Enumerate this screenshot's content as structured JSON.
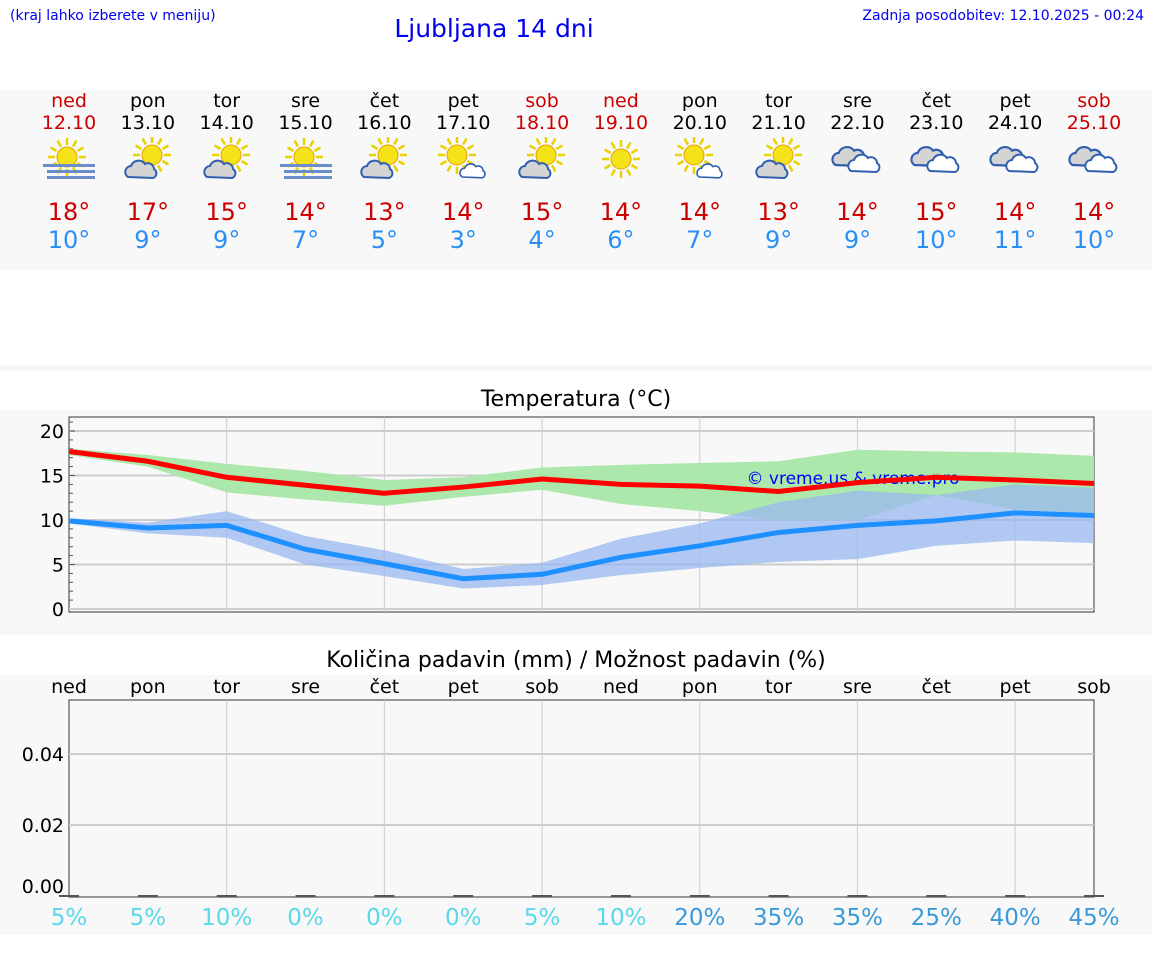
{
  "header": {
    "hint": "(kraj lahko izberete v meniju)",
    "title": "Ljubljana 14 dni",
    "updated": "Zadnja posodobitev: 12.10.2025 - 00:24"
  },
  "colors": {
    "weekend": "#cc0000",
    "max": "#cc0000",
    "min": "#2a8ff5",
    "max_line": "#ff0000",
    "min_line": "#1e90ff",
    "max_band": "#a8e6a8",
    "min_band": "#aac4f0",
    "precip_low": "#5ad8ea",
    "precip_high": "#3a9ad8"
  },
  "days": [
    {
      "name": "ned",
      "date": "12.10",
      "weekend": true,
      "icon": "sun-fog-icon",
      "max": "18°",
      "min": "10°"
    },
    {
      "name": "pon",
      "date": "13.10",
      "weekend": false,
      "icon": "partly-cloudy-icon",
      "max": "17°",
      "min": "9°"
    },
    {
      "name": "tor",
      "date": "14.10",
      "weekend": false,
      "icon": "partly-cloudy-icon",
      "max": "15°",
      "min": "9°"
    },
    {
      "name": "sre",
      "date": "15.10",
      "weekend": false,
      "icon": "sun-fog-icon",
      "max": "14°",
      "min": "7°"
    },
    {
      "name": "čet",
      "date": "16.10",
      "weekend": false,
      "icon": "partly-cloudy-icon",
      "max": "13°",
      "min": "5°"
    },
    {
      "name": "pet",
      "date": "17.10",
      "weekend": false,
      "icon": "sun-small-cloud-icon",
      "max": "14°",
      "min": "3°"
    },
    {
      "name": "sob",
      "date": "18.10",
      "weekend": true,
      "icon": "partly-cloudy-icon",
      "max": "15°",
      "min": "4°"
    },
    {
      "name": "ned",
      "date": "19.10",
      "weekend": true,
      "icon": "sun-icon",
      "max": "14°",
      "min": "6°"
    },
    {
      "name": "pon",
      "date": "20.10",
      "weekend": false,
      "icon": "sun-small-cloud-icon",
      "max": "14°",
      "min": "7°"
    },
    {
      "name": "tor",
      "date": "21.10",
      "weekend": false,
      "icon": "partly-cloudy-icon",
      "max": "13°",
      "min": "9°"
    },
    {
      "name": "sre",
      "date": "22.10",
      "weekend": false,
      "icon": "cloudy-icon",
      "max": "14°",
      "min": "9°"
    },
    {
      "name": "čet",
      "date": "23.10",
      "weekend": false,
      "icon": "cloudy-icon",
      "max": "15°",
      "min": "10°"
    },
    {
      "name": "pet",
      "date": "24.10",
      "weekend": false,
      "icon": "cloudy-icon",
      "max": "14°",
      "min": "11°"
    },
    {
      "name": "sob",
      "date": "25.10",
      "weekend": true,
      "icon": "cloudy-icon",
      "max": "14°",
      "min": "10°"
    }
  ],
  "chart_data": [
    {
      "type": "line",
      "title": "Temperatura (°C)",
      "ylim": [
        0,
        21.6
      ],
      "yticks": [
        "0",
        "5",
        "10",
        "15",
        "20"
      ],
      "grid": true,
      "watermark": "© vreme.us & vreme.pro",
      "series": [
        {
          "kind": "max",
          "values": [
            17.7,
            16.6,
            14.8,
            13.9,
            13.0,
            13.7,
            14.6,
            14.0,
            13.8,
            13.2,
            14.2,
            14.8,
            14.5,
            14.1
          ],
          "band_high": [
            18.0,
            17.3,
            16.3,
            15.5,
            14.5,
            14.8,
            15.9,
            16.2,
            16.4,
            16.6,
            17.9,
            17.7,
            17.6,
            17.2
          ],
          "band_low": [
            17.3,
            16.0,
            13.1,
            12.3,
            11.6,
            12.6,
            13.4,
            11.8,
            11.0,
            9.9,
            10.0,
            12.8,
            11.2,
            10.8
          ]
        },
        {
          "kind": "min",
          "values": [
            9.9,
            9.1,
            9.4,
            6.7,
            5.1,
            3.4,
            3.9,
            5.8,
            7.1,
            8.6,
            9.4,
            9.9,
            10.8,
            10.5
          ],
          "band_high": [
            10.2,
            9.7,
            11.0,
            8.2,
            6.6,
            4.5,
            5.2,
            7.9,
            9.6,
            12.0,
            13.3,
            12.8,
            14.0,
            13.6
          ],
          "band_low": [
            9.6,
            8.5,
            8.0,
            5.0,
            3.7,
            2.3,
            2.7,
            3.8,
            4.6,
            5.3,
            5.6,
            7.1,
            7.7,
            7.4
          ]
        }
      ]
    },
    {
      "type": "bar",
      "title": "Količina padavin (mm) / Možnost padavin (%)",
      "ylim": [
        0,
        0.055
      ],
      "yticks": [
        "0.00",
        "0.02",
        "0.04"
      ],
      "categories": [
        "ned",
        "pon",
        "tor",
        "sre",
        "čet",
        "pet",
        "sob",
        "ned",
        "pon",
        "tor",
        "sre",
        "čet",
        "pet",
        "sob"
      ],
      "values": [
        0,
        0,
        0,
        0,
        0,
        0,
        0,
        0,
        0,
        0,
        0,
        0,
        0,
        0
      ],
      "probability": [
        "5%",
        "5%",
        "10%",
        "0%",
        "0%",
        "0%",
        "5%",
        "10%",
        "20%",
        "35%",
        "35%",
        "25%",
        "40%",
        "45%"
      ]
    }
  ]
}
